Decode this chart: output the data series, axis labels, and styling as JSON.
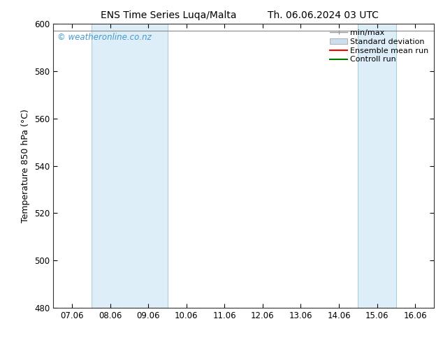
{
  "title_left": "ENS Time Series Luqa/Malta",
  "title_right": "Th. 06.06.2024 03 UTC",
  "ylabel": "Temperature 850 hPa (°C)",
  "ylim": [
    480,
    600
  ],
  "yticks": [
    480,
    500,
    520,
    540,
    560,
    580,
    600
  ],
  "xtick_labels": [
    "07.06",
    "08.06",
    "09.06",
    "10.06",
    "11.06",
    "12.06",
    "13.06",
    "14.06",
    "15.06",
    "16.06"
  ],
  "xtick_positions": [
    0,
    1,
    2,
    3,
    4,
    5,
    6,
    7,
    8,
    9
  ],
  "shaded_regions": [
    {
      "x_start": 1,
      "x_end": 3,
      "color": "#ddeef8",
      "border_color": "#aaccdd"
    },
    {
      "x_start": 8,
      "x_end": 9,
      "color": "#ddeef8",
      "border_color": "#aaccdd"
    }
  ],
  "watermark_text": "© weatheronline.co.nz",
  "watermark_color": "#4499cc",
  "bg_color": "#ffffff",
  "plot_bg_color": "#ffffff",
  "border_color": "#333333",
  "legend_items": [
    {
      "label": "min/max",
      "color": "#999999",
      "lw": 1.0,
      "type": "errorbar"
    },
    {
      "label": "Standard deviation",
      "color": "#ccddee",
      "lw": 6,
      "type": "band"
    },
    {
      "label": "Ensemble mean run",
      "color": "#ff0000",
      "lw": 1.5,
      "type": "line"
    },
    {
      "label": "Controll run",
      "color": "#007700",
      "lw": 1.5,
      "type": "line"
    }
  ],
  "title_fontsize": 10,
  "axis_label_fontsize": 9,
  "tick_fontsize": 8.5,
  "legend_fontsize": 8,
  "watermark_fontsize": 8.5,
  "data_line_y": 597,
  "data_line_color": "#888888"
}
